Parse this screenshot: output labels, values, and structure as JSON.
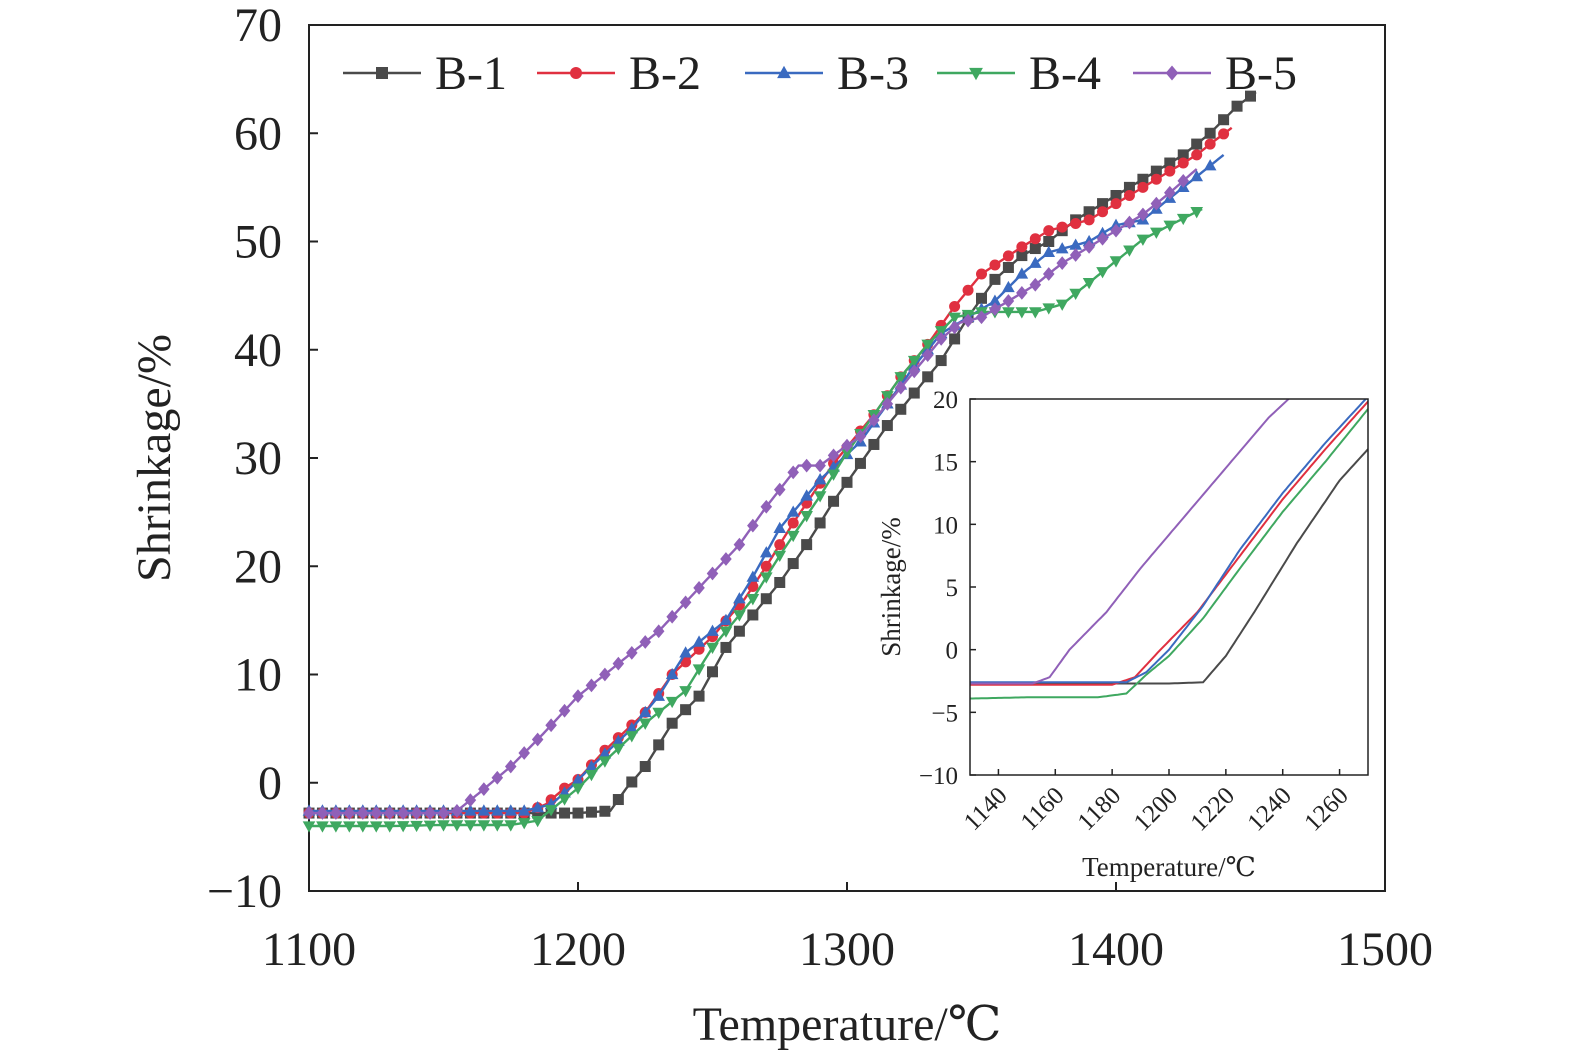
{
  "chart_data": [
    {
      "type": "line",
      "xlabel": "Temperature/℃",
      "ylabel": "Shrinkage/%",
      "xlim": [
        1100,
        1500
      ],
      "ylim": [
        -10,
        70
      ],
      "x_ticks": [
        "1100",
        "1200",
        "1300",
        "1400",
        "1500"
      ],
      "y_ticks": [
        "−10",
        "0",
        "10",
        "20",
        "30",
        "40",
        "50",
        "60",
        "70"
      ],
      "legend_position": "top",
      "grid": false,
      "series": [
        {
          "name": "B-1",
          "color": "#4a4a4a",
          "marker": "square",
          "points": [
            [
              1100,
              -2.8
            ],
            [
              1150,
              -2.8
            ],
            [
              1180,
              -2.8
            ],
            [
              1200,
              -2.8
            ],
            [
              1212,
              -2.6
            ],
            [
              1218,
              -0.5
            ],
            [
              1225,
              1.5
            ],
            [
              1235,
              5.5
            ],
            [
              1245,
              8
            ],
            [
              1255,
              12.5
            ],
            [
              1265,
              15.5
            ],
            [
              1275,
              18.5
            ],
            [
              1285,
              22
            ],
            [
              1295,
              26
            ],
            [
              1305,
              29.5
            ],
            [
              1315,
              33
            ],
            [
              1325,
              36
            ],
            [
              1335,
              39
            ],
            [
              1345,
              43
            ],
            [
              1355,
              46.5
            ],
            [
              1365,
              48.7
            ],
            [
              1375,
              50
            ],
            [
              1385,
              52
            ],
            [
              1395,
              53.5
            ],
            [
              1405,
              55
            ],
            [
              1415,
              56.5
            ],
            [
              1425,
              58
            ],
            [
              1435,
              60
            ],
            [
              1445,
              62.5
            ],
            [
              1452,
              63.8
            ]
          ]
        },
        {
          "name": "B-2",
          "color": "#e03040",
          "marker": "circle",
          "points": [
            [
              1100,
              -2.8
            ],
            [
              1150,
              -2.8
            ],
            [
              1180,
              -2.8
            ],
            [
              1188,
              -2
            ],
            [
              1195,
              -0.5
            ],
            [
              1200,
              0.3
            ],
            [
              1210,
              3
            ],
            [
              1225,
              6.5
            ],
            [
              1235,
              10
            ],
            [
              1250,
              13.5
            ],
            [
              1262,
              17
            ],
            [
              1270,
              20
            ],
            [
              1280,
              24
            ],
            [
              1295,
              29.5
            ],
            [
              1310,
              34
            ],
            [
              1320,
              37.5
            ],
            [
              1330,
              40.5
            ],
            [
              1340,
              44
            ],
            [
              1350,
              47
            ],
            [
              1365,
              49.5
            ],
            [
              1375,
              51
            ],
            [
              1390,
              52
            ],
            [
              1400,
              53.5
            ],
            [
              1410,
              55
            ],
            [
              1420,
              56.5
            ],
            [
              1430,
              58
            ],
            [
              1435,
              59
            ],
            [
              1443,
              60.5
            ]
          ]
        },
        {
          "name": "B-3",
          "color": "#3a6ac0",
          "marker": "triangle-up",
          "points": [
            [
              1100,
              -2.6
            ],
            [
              1150,
              -2.6
            ],
            [
              1180,
              -2.6
            ],
            [
              1190,
              -2
            ],
            [
              1197,
              -0.5
            ],
            [
              1205,
              1.5
            ],
            [
              1220,
              5
            ],
            [
              1230,
              8
            ],
            [
              1240,
              12
            ],
            [
              1255,
              15
            ],
            [
              1265,
              19
            ],
            [
              1275,
              23.5
            ],
            [
              1290,
              28
            ],
            [
              1305,
              31.5
            ],
            [
              1315,
              35
            ],
            [
              1325,
              38.5
            ],
            [
              1335,
              41.5
            ],
            [
              1345,
              43
            ],
            [
              1355,
              44.5
            ],
            [
              1365,
              47
            ],
            [
              1375,
              49
            ],
            [
              1390,
              50
            ],
            [
              1400,
              51.5
            ],
            [
              1410,
              52
            ],
            [
              1420,
              54
            ],
            [
              1430,
              56
            ],
            [
              1440,
              58
            ]
          ]
        },
        {
          "name": "B-4",
          "color": "#3fa860",
          "marker": "triangle-down",
          "points": [
            [
              1100,
              -4
            ],
            [
              1130,
              -4
            ],
            [
              1150,
              -3.9
            ],
            [
              1175,
              -3.9
            ],
            [
              1185,
              -3.5
            ],
            [
              1190,
              -2.5
            ],
            [
              1200,
              -0.5
            ],
            [
              1210,
              2
            ],
            [
              1225,
              5.5
            ],
            [
              1240,
              8.5
            ],
            [
              1250,
              12.5
            ],
            [
              1265,
              17
            ],
            [
              1275,
              21
            ],
            [
              1290,
              26.5
            ],
            [
              1300,
              30.5
            ],
            [
              1310,
              34
            ],
            [
              1320,
              37.5
            ],
            [
              1330,
              40.5
            ],
            [
              1340,
              43
            ],
            [
              1350,
              43.5
            ],
            [
              1360,
              43.5
            ],
            [
              1370,
              43.5
            ],
            [
              1380,
              44.2
            ],
            [
              1390,
              46.2
            ],
            [
              1400,
              48.2
            ],
            [
              1410,
              50.2
            ],
            [
              1420,
              51.5
            ],
            [
              1432,
              53
            ]
          ]
        },
        {
          "name": "B-5",
          "color": "#9060b8",
          "marker": "diamond",
          "points": [
            [
              1100,
              -2.8
            ],
            [
              1150,
              -2.8
            ],
            [
              1155,
              -2.6
            ],
            [
              1163,
              -1
            ],
            [
              1175,
              1.5
            ],
            [
              1187,
              4.5
            ],
            [
              1200,
              8
            ],
            [
              1215,
              11
            ],
            [
              1230,
              14
            ],
            [
              1245,
              18
            ],
            [
              1260,
              22
            ],
            [
              1270,
              25.5
            ],
            [
              1282,
              29.3
            ],
            [
              1290,
              29.3
            ],
            [
              1298,
              30.8
            ],
            [
              1305,
              32
            ],
            [
              1315,
              35
            ],
            [
              1325,
              38
            ],
            [
              1335,
              41
            ],
            [
              1342,
              42.5
            ],
            [
              1350,
              43
            ],
            [
              1360,
              44.5
            ],
            [
              1370,
              46
            ],
            [
              1380,
              48
            ],
            [
              1390,
              49.5
            ],
            [
              1400,
              51
            ],
            [
              1410,
              52.5
            ],
            [
              1420,
              54.5
            ],
            [
              1430,
              56.7
            ]
          ]
        }
      ]
    },
    {
      "type": "line",
      "xlabel": "Temperature/℃",
      "ylabel": "Shrinkage/%",
      "xlim": [
        1130,
        1270
      ],
      "ylim": [
        -10,
        20
      ],
      "x_ticks": [
        "1140",
        "1160",
        "1180",
        "1200",
        "1220",
        "1240",
        "1260"
      ],
      "y_ticks": [
        "−10",
        "−5",
        "0",
        "5",
        "10",
        "15",
        "20"
      ],
      "grid": false,
      "series": [
        {
          "name": "B-1",
          "color": "#4a4a4a",
          "points": [
            [
              1130,
              -2.7
            ],
            [
              1200,
              -2.7
            ],
            [
              1212,
              -2.6
            ],
            [
              1220,
              -0.5
            ],
            [
              1230,
              3
            ],
            [
              1245,
              8.5
            ],
            [
              1260,
              13.5
            ],
            [
              1270,
              16
            ]
          ]
        },
        {
          "name": "B-2",
          "color": "#e03040",
          "points": [
            [
              1130,
              -2.8
            ],
            [
              1180,
              -2.8
            ],
            [
              1188,
              -2.2
            ],
            [
              1197,
              0
            ],
            [
              1210,
              3
            ],
            [
              1225,
              7.5
            ],
            [
              1240,
              12
            ],
            [
              1255,
              16
            ],
            [
              1270,
              19.8
            ]
          ]
        },
        {
          "name": "B-3",
          "color": "#3a6ac0",
          "points": [
            [
              1130,
              -2.6
            ],
            [
              1185,
              -2.6
            ],
            [
              1192,
              -1.8
            ],
            [
              1200,
              0
            ],
            [
              1212,
              3.5
            ],
            [
              1225,
              8
            ],
            [
              1240,
              12.5
            ],
            [
              1255,
              16.5
            ],
            [
              1270,
              20.2
            ]
          ]
        },
        {
          "name": "B-4",
          "color": "#3fa860",
          "points": [
            [
              1130,
              -3.9
            ],
            [
              1150,
              -3.8
            ],
            [
              1175,
              -3.8
            ],
            [
              1185,
              -3.5
            ],
            [
              1192,
              -2
            ],
            [
              1200,
              -0.5
            ],
            [
              1212,
              2.5
            ],
            [
              1225,
              6.5
            ],
            [
              1240,
              11
            ],
            [
              1255,
              15
            ],
            [
              1270,
              19.2
            ]
          ]
        },
        {
          "name": "B-5",
          "color": "#9060b8",
          "points": [
            [
              1130,
              -2.7
            ],
            [
              1152,
              -2.7
            ],
            [
              1158,
              -2.2
            ],
            [
              1165,
              0
            ],
            [
              1178,
              3
            ],
            [
              1190,
              6.5
            ],
            [
              1205,
              10.5
            ],
            [
              1220,
              14.5
            ],
            [
              1235,
              18.5
            ],
            [
              1243,
              20.2
            ]
          ]
        }
      ]
    }
  ]
}
